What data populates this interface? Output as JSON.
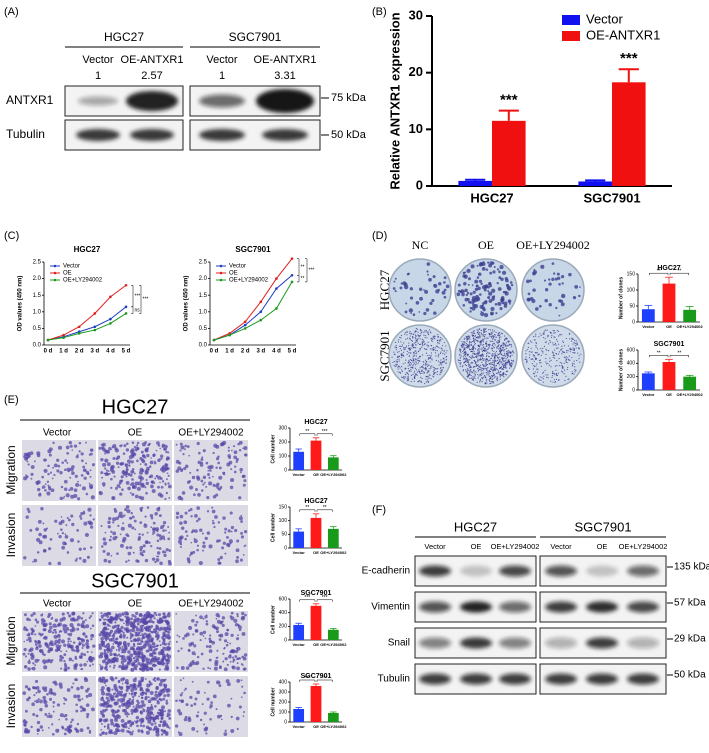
{
  "panel_labels": [
    "(A)",
    "(B)",
    "(C)",
    "(D)",
    "(E)",
    "(F)"
  ],
  "blot_a": {
    "groups": [
      "HGC27",
      "SGC7901"
    ],
    "lanes": [
      "Vector",
      "OE-ANTXR1",
      "Vector",
      "OE-ANTXR1"
    ],
    "ratios": [
      1,
      2.57,
      1,
      3.31
    ],
    "rows": [
      "ANTXR1",
      "Tubulin"
    ],
    "markers": [
      "75 kDa",
      "50 kDa"
    ]
  },
  "chart_data": [
    {
      "type": "bar",
      "y_label": "Relative ANTXR1 expression",
      "categories": [
        "HGC27",
        "SGC7901"
      ],
      "series": [
        {
          "name": "Vector",
          "color": "#1010f0",
          "values": [
            0.9,
            0.8
          ],
          "errors": [
            0.2,
            0.2
          ]
        },
        {
          "name": "OE-ANTXR1",
          "color": "#f01010",
          "values": [
            11.5,
            18.3
          ],
          "errors": [
            1.8,
            2.3
          ]
        }
      ],
      "ylim": [
        0,
        30
      ],
      "yticks": [
        0,
        10,
        20,
        30
      ],
      "legend": "top-right",
      "annotations": [
        "***",
        "***"
      ]
    },
    {
      "type": "line",
      "title": "HGC27",
      "y_label": "OD values (450 nm)",
      "categories": [
        "0 d",
        "1 d",
        "2 d",
        "3 d",
        "4 d",
        "5 d"
      ],
      "series": [
        {
          "name": "Vector",
          "color": "#1f3fbf",
          "values": [
            0.15,
            0.25,
            0.4,
            0.55,
            0.78,
            1.15
          ]
        },
        {
          "name": "OE",
          "color": "#e02020",
          "values": [
            0.15,
            0.3,
            0.55,
            0.95,
            1.45,
            1.8
          ]
        },
        {
          "name": "OE+LY294002",
          "color": "#1a9a1a",
          "values": [
            0.15,
            0.22,
            0.35,
            0.45,
            0.65,
            0.95
          ]
        }
      ],
      "ylim": [
        0,
        2.5
      ],
      "yticks": [
        {
          "value": 0,
          "label": "0.0"
        },
        0.5,
        {
          "value": 1,
          "label": "1.0"
        },
        1.5,
        {
          "value": 2,
          "label": "2.0"
        },
        2.5
      ],
      "legend": "top-left",
      "annotations": [
        "***",
        "***",
        "ns"
      ]
    },
    {
      "type": "line",
      "title": "SGC7901",
      "y_label": "OD values (450 nm)",
      "categories": [
        "0 d",
        "1 d",
        "2 d",
        "3 d",
        "4 d",
        "5 d"
      ],
      "series": [
        {
          "name": "Vector",
          "color": "#1f3fbf",
          "values": [
            0.15,
            0.3,
            0.6,
            1.0,
            1.7,
            2.1
          ]
        },
        {
          "name": "OE",
          "color": "#e02020",
          "values": [
            0.15,
            0.35,
            0.7,
            1.3,
            2.0,
            2.6
          ]
        },
        {
          "name": "OE+LY294002",
          "color": "#1a9a1a",
          "values": [
            0.15,
            0.3,
            0.5,
            0.75,
            1.1,
            1.9
          ]
        }
      ],
      "ylim": [
        0,
        2.5
      ],
      "yticks": [
        {
          "value": 0,
          "label": "0.0"
        },
        0.5,
        {
          "value": 1,
          "label": "1.0"
        },
        1.5,
        {
          "value": 2,
          "label": "2.0"
        },
        2.5
      ],
      "legend": "top-left",
      "annotations": [
        "**",
        "***",
        "**"
      ]
    },
    {
      "type": "bar",
      "title": "HGC27",
      "y_label": "Number of clones",
      "categories": [
        "Vector",
        "OE",
        "OE+LY294002"
      ],
      "values": [
        40,
        120,
        38
      ],
      "errors": [
        12,
        20,
        10
      ],
      "colors": [
        "#1f3fff",
        "#ff1a1a",
        "#1a9a1a"
      ],
      "ylim": [
        0,
        150
      ],
      "yticks": [
        0,
        50,
        100,
        150
      ],
      "annotations": [
        "**",
        "**"
      ]
    },
    {
      "type": "bar",
      "title": "SGC7901",
      "y_label": "Number of clones",
      "categories": [
        "Vector",
        "OE",
        "OE+LY294002"
      ],
      "values": [
        250,
        420,
        200
      ],
      "errors": [
        20,
        40,
        20
      ],
      "colors": [
        "#1f3fff",
        "#ff1a1a",
        "#1a9a1a"
      ],
      "ylim": [
        0,
        600
      ],
      "yticks": [
        0,
        200,
        400,
        600
      ],
      "annotations": [
        "**",
        "**"
      ]
    },
    {
      "type": "bar",
      "title": "HGC27",
      "y_label": "Cell number",
      "categories": [
        "Vector",
        "OE",
        "OE+LY294002"
      ],
      "values": [
        130,
        210,
        90
      ],
      "errors": [
        20,
        20,
        12
      ],
      "colors": [
        "#1f3fff",
        "#ff1a1a",
        "#1a9a1a"
      ],
      "ylim": [
        0,
        300
      ],
      "yticks": [
        0,
        100,
        200,
        300
      ],
      "annotations": [
        "**",
        "***"
      ]
    },
    {
      "type": "bar",
      "title": "HGC27",
      "y_label": "Cell number",
      "categories": [
        "Vector",
        "OE",
        "OE+LY294002"
      ],
      "values": [
        60,
        110,
        70
      ],
      "errors": [
        10,
        15,
        8
      ],
      "colors": [
        "#1f3fff",
        "#ff1a1a",
        "#1a9a1a"
      ],
      "ylim": [
        0,
        150
      ],
      "yticks": [
        0,
        50,
        100,
        150
      ],
      "annotations": [
        "**",
        "**"
      ]
    },
    {
      "type": "bar",
      "title": "SGC7901",
      "y_label": "Cell number",
      "categories": [
        "Vector",
        "OE",
        "OE+LY294002"
      ],
      "values": [
        220,
        500,
        150
      ],
      "errors": [
        25,
        30,
        20
      ],
      "colors": [
        "#1f3fff",
        "#ff1a1a",
        "#1a9a1a"
      ],
      "ylim": [
        0,
        600
      ],
      "yticks": [
        0,
        200,
        400,
        600
      ],
      "annotations": [
        "***",
        "***"
      ]
    },
    {
      "type": "bar",
      "title": "SGC7901",
      "y_label": "Cell number",
      "categories": [
        "Vector",
        "OE",
        "OE+LY294002"
      ],
      "values": [
        130,
        360,
        90
      ],
      "errors": [
        15,
        20,
        10
      ],
      "colors": [
        "#1f3fff",
        "#ff1a1a",
        "#1a9a1a"
      ],
      "ylim": [
        0,
        400
      ],
      "yticks": [
        0,
        100,
        200,
        300,
        400
      ],
      "annotations": [
        "***",
        "***"
      ]
    }
  ],
  "colony_d": {
    "columns": [
      "NC",
      "OE",
      "OE+LY294002"
    ],
    "rows": [
      "HGC27",
      "SGC7901"
    ]
  },
  "transwell_e": {
    "panels": [
      {
        "title": "HGC27",
        "columns": [
          "Vector",
          "OE",
          "OE+LY294002"
        ],
        "rows": [
          "Migration",
          "Invasion"
        ]
      },
      {
        "title": "SGC7901",
        "columns": [
          "Vector",
          "OE",
          "OE+LY294002"
        ],
        "rows": [
          "Migration",
          "Invasion"
        ]
      }
    ]
  },
  "blot_f": {
    "groups": [
      "HGC27",
      "SGC7901"
    ],
    "lanes": [
      "Vector",
      "OE",
      "OE+LY294002",
      "Vector",
      "OE",
      "OE+LY294002"
    ],
    "rows": [
      "E-cadherin",
      "Vimentin",
      "Snail",
      "Tubulin"
    ],
    "markers": [
      "135 kDa",
      "57 kDa",
      "29 kDa",
      "50 kDa"
    ]
  }
}
